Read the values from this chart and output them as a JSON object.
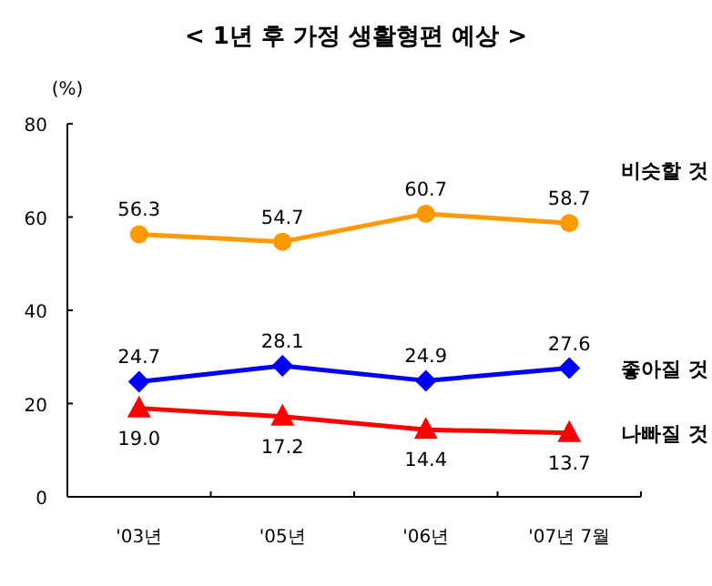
{
  "chart_data": {
    "type": "line",
    "title": "< 1년 후 가정 생활형편 예상 >",
    "ylabel": "(%)",
    "categories": [
      "'03년",
      "'05년",
      "'06년",
      "'07년 7월"
    ],
    "ylim": [
      0,
      80
    ],
    "yticks": [
      0,
      20,
      40,
      60,
      80
    ],
    "grid": false,
    "legend": false,
    "series": [
      {
        "name": "비슷할 것",
        "color": "#ff9900",
        "marker": "circle",
        "values": [
          56.3,
          54.7,
          60.7,
          58.7
        ],
        "value_labels": [
          "56.3",
          "54.7",
          "60.7",
          "58.7"
        ]
      },
      {
        "name": "좋아질 것",
        "color": "#0000ff",
        "marker": "diamond",
        "values": [
          24.7,
          28.1,
          24.9,
          27.6
        ],
        "value_labels": [
          "24.7",
          "28.1",
          "24.9",
          "27.6"
        ]
      },
      {
        "name": "나빠질 것",
        "color": "#ff0000",
        "marker": "triangle",
        "values": [
          19.0,
          17.2,
          14.4,
          13.7
        ],
        "value_labels": [
          "19.0",
          "17.2",
          "14.4",
          "13.7"
        ]
      }
    ]
  }
}
